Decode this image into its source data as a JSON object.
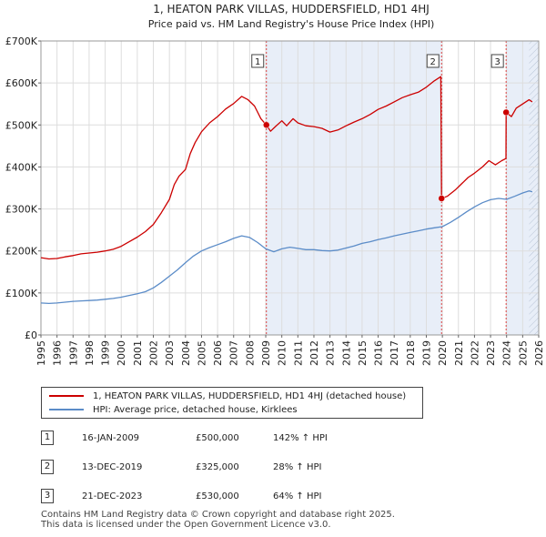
{
  "chart_data": {
    "type": "line",
    "title": "1, HEATON PARK VILLAS, HUDDERSFIELD, HD1 4HJ",
    "subtitle": "Price paid vs. HM Land Registry's House Price Index (HPI)",
    "xlim": [
      1995,
      2026
    ],
    "ylim": [
      0,
      700000
    ],
    "xticks": [
      1995,
      1996,
      1997,
      1998,
      1999,
      2000,
      2001,
      2002,
      2003,
      2004,
      2005,
      2006,
      2007,
      2008,
      2009,
      2010,
      2011,
      2012,
      2013,
      2014,
      2015,
      2016,
      2017,
      2018,
      2019,
      2020,
      2021,
      2022,
      2023,
      2024,
      2025,
      2026
    ],
    "yticks": [
      {
        "value": 0,
        "label": "£0"
      },
      {
        "value": 100000,
        "label": "£100K"
      },
      {
        "value": 200000,
        "label": "£200K"
      },
      {
        "value": 300000,
        "label": "£300K"
      },
      {
        "value": 400000,
        "label": "£400K"
      },
      {
        "value": 500000,
        "label": "£500K"
      },
      {
        "value": 600000,
        "label": "£600K"
      },
      {
        "value": 700000,
        "label": "£700K"
      }
    ],
    "shaded_ranges": [
      [
        2009.04,
        2019.95
      ],
      [
        2023.97,
        2026
      ]
    ],
    "hatched_from": 2025.4,
    "series": [
      {
        "name": "1, HEATON PARK VILLAS, HUDDERSFIELD, HD1 4HJ (detached house)",
        "color": "#cc0000",
        "points": [
          [
            1995,
            184000
          ],
          [
            1995.5,
            181000
          ],
          [
            1996,
            182000
          ],
          [
            1996.5,
            186000
          ],
          [
            1997,
            189000
          ],
          [
            1997.5,
            193000
          ],
          [
            1998,
            195000
          ],
          [
            1998.5,
            197000
          ],
          [
            1999,
            200000
          ],
          [
            1999.5,
            204000
          ],
          [
            2000,
            211000
          ],
          [
            2000.5,
            222000
          ],
          [
            2001,
            233000
          ],
          [
            2001.5,
            246000
          ],
          [
            2002,
            263000
          ],
          [
            2002.5,
            291000
          ],
          [
            2003,
            323000
          ],
          [
            2003.3,
            358000
          ],
          [
            2003.6,
            378000
          ],
          [
            2004,
            394000
          ],
          [
            2004.3,
            432000
          ],
          [
            2004.6,
            458000
          ],
          [
            2005,
            484000
          ],
          [
            2005.5,
            505000
          ],
          [
            2006,
            520000
          ],
          [
            2006.5,
            538000
          ],
          [
            2007,
            551000
          ],
          [
            2007.5,
            568000
          ],
          [
            2007.9,
            560000
          ],
          [
            2008.3,
            545000
          ],
          [
            2008.7,
            515000
          ],
          [
            2009.04,
            500000
          ],
          [
            2009.3,
            485000
          ],
          [
            2009.6,
            496000
          ],
          [
            2010,
            510000
          ],
          [
            2010.3,
            498000
          ],
          [
            2010.7,
            515000
          ],
          [
            2011,
            505000
          ],
          [
            2011.5,
            498000
          ],
          [
            2012,
            496000
          ],
          [
            2012.5,
            492000
          ],
          [
            2013,
            483000
          ],
          [
            2013.5,
            488000
          ],
          [
            2014,
            498000
          ],
          [
            2014.5,
            507000
          ],
          [
            2015,
            515000
          ],
          [
            2015.5,
            525000
          ],
          [
            2016,
            537000
          ],
          [
            2016.5,
            545000
          ],
          [
            2017,
            555000
          ],
          [
            2017.5,
            565000
          ],
          [
            2018,
            572000
          ],
          [
            2018.5,
            578000
          ],
          [
            2019,
            590000
          ],
          [
            2019.5,
            605000
          ],
          [
            2019.9,
            615000
          ],
          [
            2019.95,
            325000
          ],
          [
            2020.3,
            330000
          ],
          [
            2020.8,
            345000
          ],
          [
            2021.2,
            360000
          ],
          [
            2021.6,
            375000
          ],
          [
            2022,
            385000
          ],
          [
            2022.5,
            400000
          ],
          [
            2022.9,
            415000
          ],
          [
            2023.3,
            405000
          ],
          [
            2023.7,
            415000
          ],
          [
            2023.96,
            420000
          ],
          [
            2023.97,
            530000
          ],
          [
            2024.3,
            520000
          ],
          [
            2024.6,
            540000
          ],
          [
            2025,
            550000
          ],
          [
            2025.4,
            560000
          ],
          [
            2025.6,
            555000
          ]
        ]
      },
      {
        "name": "HPI: Average price, detached house, Kirklees",
        "color": "#5b8cc8",
        "points": [
          [
            1995,
            76000
          ],
          [
            1995.5,
            75000
          ],
          [
            1996,
            76000
          ],
          [
            1996.5,
            78000
          ],
          [
            1997,
            80000
          ],
          [
            1997.5,
            81000
          ],
          [
            1998,
            82000
          ],
          [
            1998.5,
            83000
          ],
          [
            1999,
            85000
          ],
          [
            1999.5,
            87000
          ],
          [
            2000,
            90000
          ],
          [
            2000.5,
            94000
          ],
          [
            2001,
            98000
          ],
          [
            2001.5,
            103000
          ],
          [
            2002,
            112000
          ],
          [
            2002.5,
            125000
          ],
          [
            2003,
            140000
          ],
          [
            2003.5,
            155000
          ],
          [
            2004,
            172000
          ],
          [
            2004.5,
            188000
          ],
          [
            2005,
            200000
          ],
          [
            2005.5,
            208000
          ],
          [
            2006,
            215000
          ],
          [
            2006.5,
            222000
          ],
          [
            2007,
            230000
          ],
          [
            2007.5,
            236000
          ],
          [
            2008,
            232000
          ],
          [
            2008.5,
            220000
          ],
          [
            2009,
            205000
          ],
          [
            2009.5,
            198000
          ],
          [
            2010,
            205000
          ],
          [
            2010.5,
            209000
          ],
          [
            2011,
            206000
          ],
          [
            2011.5,
            203000
          ],
          [
            2012,
            203000
          ],
          [
            2012.5,
            201000
          ],
          [
            2013,
            200000
          ],
          [
            2013.5,
            202000
          ],
          [
            2014,
            207000
          ],
          [
            2014.5,
            212000
          ],
          [
            2015,
            218000
          ],
          [
            2015.5,
            222000
          ],
          [
            2016,
            227000
          ],
          [
            2016.5,
            231000
          ],
          [
            2017,
            236000
          ],
          [
            2017.5,
            240000
          ],
          [
            2018,
            244000
          ],
          [
            2018.5,
            248000
          ],
          [
            2019,
            252000
          ],
          [
            2019.5,
            255000
          ],
          [
            2020,
            258000
          ],
          [
            2020.5,
            268000
          ],
          [
            2021,
            280000
          ],
          [
            2021.5,
            293000
          ],
          [
            2022,
            305000
          ],
          [
            2022.5,
            315000
          ],
          [
            2023,
            322000
          ],
          [
            2023.5,
            325000
          ],
          [
            2024,
            323000
          ],
          [
            2024.5,
            330000
          ],
          [
            2025,
            338000
          ],
          [
            2025.4,
            343000
          ],
          [
            2025.6,
            341000
          ]
        ]
      }
    ],
    "markers": [
      {
        "label": "1",
        "x": 2009.04,
        "y": 500000
      },
      {
        "label": "2",
        "x": 2019.95,
        "y": 325000
      },
      {
        "label": "3",
        "x": 2023.97,
        "y": 530000
      }
    ]
  },
  "legend": {
    "property_label": "1, HEATON PARK VILLAS, HUDDERSFIELD, HD1 4HJ (detached house)",
    "hpi_label": "HPI: Average price, detached house, Kirklees",
    "property_color": "#cc0000",
    "hpi_color": "#5b8cc8"
  },
  "transactions": [
    {
      "num": "1",
      "date": "16-JAN-2009",
      "price": "£500,000",
      "hpi": "142% ↑ HPI"
    },
    {
      "num": "2",
      "date": "13-DEC-2019",
      "price": "£325,000",
      "hpi": "28% ↑ HPI"
    },
    {
      "num": "3",
      "date": "21-DEC-2023",
      "price": "£530,000",
      "hpi": "64% ↑ HPI"
    }
  ],
  "footer": {
    "line1": "Contains HM Land Registry data © Crown copyright and database right 2025.",
    "line2": "This data is licensed under the Open Government Licence v3.0."
  }
}
